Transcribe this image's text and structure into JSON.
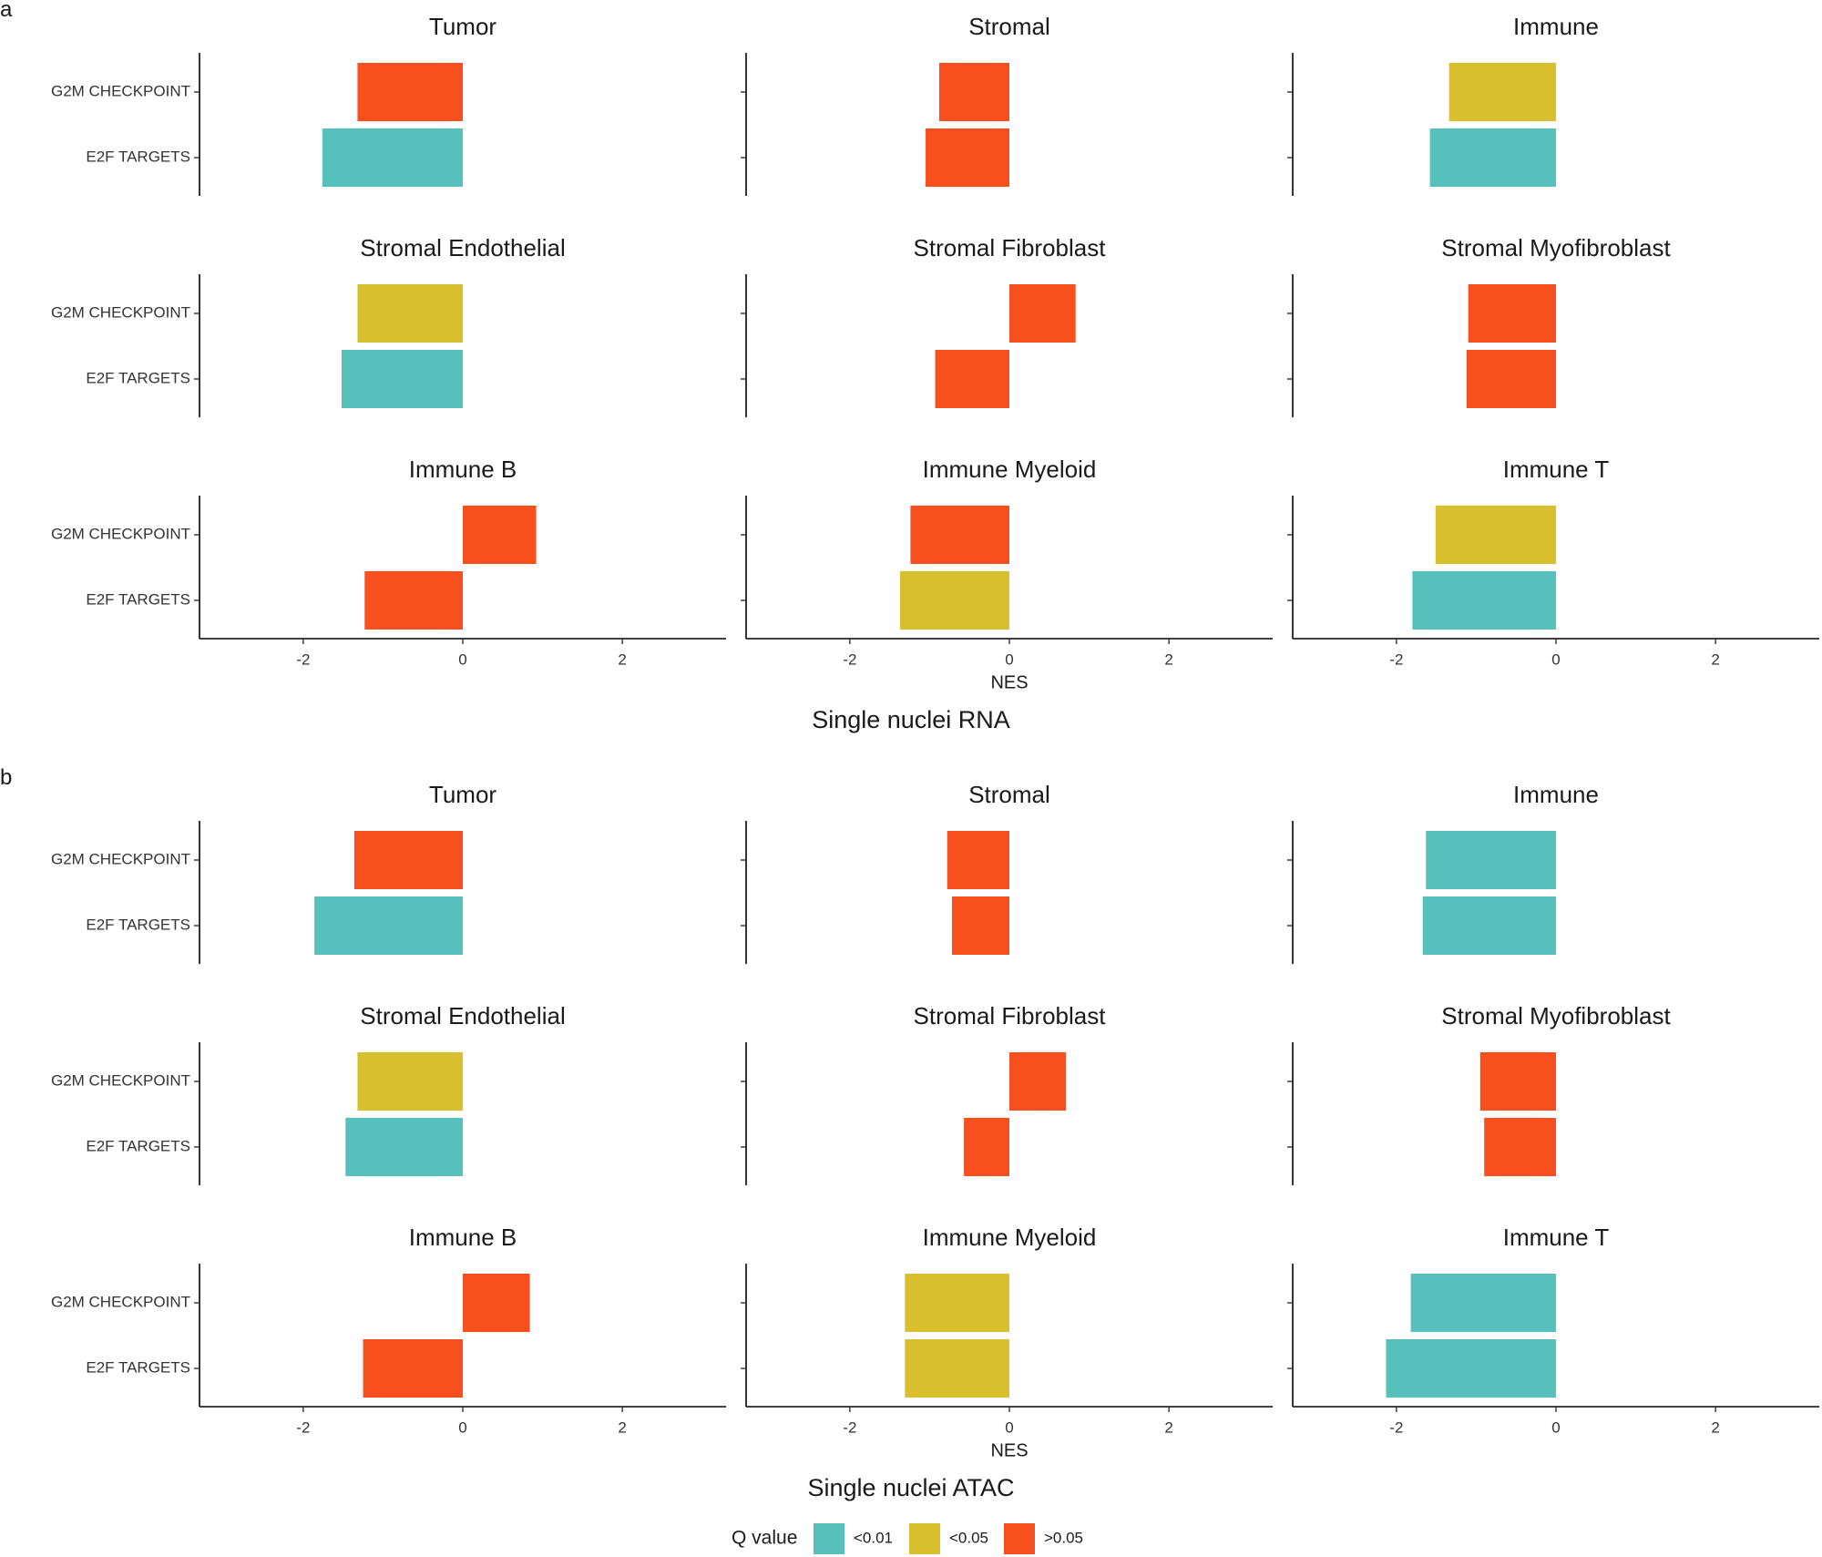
{
  "chart_data": [
    {
      "panel": "a",
      "type": "bar",
      "orientation": "horizontal",
      "title": "Single nuclei RNA",
      "xlabel": "NES",
      "xlim": [
        -3.3,
        3.3
      ],
      "xticks": [
        -2,
        0,
        2
      ],
      "categories": [
        "G2M CHECKPOINT",
        "E2F TARGETS"
      ],
      "facets": [
        {
          "name": "Tumor",
          "bars": [
            {
              "category": "G2M CHECKPOINT",
              "value": -1.32,
              "q": ">0.05"
            },
            {
              "category": "E2F TARGETS",
              "value": -1.76,
              "q": "<0.01"
            }
          ]
        },
        {
          "name": "Stromal",
          "bars": [
            {
              "category": "G2M CHECKPOINT",
              "value": -0.88,
              "q": ">0.05"
            },
            {
              "category": "E2F TARGETS",
              "value": -1.05,
              "q": ">0.05"
            }
          ]
        },
        {
          "name": "Immune",
          "bars": [
            {
              "category": "G2M CHECKPOINT",
              "value": -1.34,
              "q": "<0.05"
            },
            {
              "category": "E2F TARGETS",
              "value": -1.58,
              "q": "<0.01"
            }
          ]
        },
        {
          "name": "Stromal Endothelial",
          "bars": [
            {
              "category": "G2M CHECKPOINT",
              "value": -1.32,
              "q": "<0.05"
            },
            {
              "category": "E2F TARGETS",
              "value": -1.52,
              "q": "<0.01"
            }
          ]
        },
        {
          "name": "Stromal Fibroblast",
          "bars": [
            {
              "category": "G2M CHECKPOINT",
              "value": 0.83,
              "q": ">0.05"
            },
            {
              "category": "E2F TARGETS",
              "value": -0.93,
              "q": ">0.05"
            }
          ]
        },
        {
          "name": "Stromal Myofibroblast",
          "bars": [
            {
              "category": "G2M CHECKPOINT",
              "value": -1.1,
              "q": ">0.05"
            },
            {
              "category": "E2F TARGETS",
              "value": -1.12,
              "q": ">0.05"
            }
          ]
        },
        {
          "name": "Immune B",
          "bars": [
            {
              "category": "G2M CHECKPOINT",
              "value": 0.92,
              "q": ">0.05"
            },
            {
              "category": "E2F TARGETS",
              "value": -1.23,
              "q": ">0.05"
            }
          ]
        },
        {
          "name": "Immune Myeloid",
          "bars": [
            {
              "category": "G2M CHECKPOINT",
              "value": -1.24,
              "q": ">0.05"
            },
            {
              "category": "E2F TARGETS",
              "value": -1.37,
              "q": "<0.05"
            }
          ]
        },
        {
          "name": "Immune T",
          "bars": [
            {
              "category": "G2M CHECKPOINT",
              "value": -1.51,
              "q": "<0.05"
            },
            {
              "category": "E2F TARGETS",
              "value": -1.8,
              "q": "<0.01"
            }
          ]
        }
      ]
    },
    {
      "panel": "b",
      "type": "bar",
      "orientation": "horizontal",
      "title": "Single nuclei ATAC",
      "xlabel": "NES",
      "xlim": [
        -3.3,
        3.3
      ],
      "xticks": [
        -2,
        0,
        2
      ],
      "categories": [
        "G2M CHECKPOINT",
        "E2F TARGETS"
      ],
      "facets": [
        {
          "name": "Tumor",
          "bars": [
            {
              "category": "G2M CHECKPOINT",
              "value": -1.36,
              "q": ">0.05"
            },
            {
              "category": "E2F TARGETS",
              "value": -1.86,
              "q": "<0.01"
            }
          ]
        },
        {
          "name": "Stromal",
          "bars": [
            {
              "category": "G2M CHECKPOINT",
              "value": -0.78,
              "q": ">0.05"
            },
            {
              "category": "E2F TARGETS",
              "value": -0.72,
              "q": ">0.05"
            }
          ]
        },
        {
          "name": "Immune",
          "bars": [
            {
              "category": "G2M CHECKPOINT",
              "value": -1.63,
              "q": "<0.01"
            },
            {
              "category": "E2F TARGETS",
              "value": -1.67,
              "q": "<0.01"
            }
          ]
        },
        {
          "name": "Stromal Endothelial",
          "bars": [
            {
              "category": "G2M CHECKPOINT",
              "value": -1.32,
              "q": "<0.05"
            },
            {
              "category": "E2F TARGETS",
              "value": -1.47,
              "q": "<0.01"
            }
          ]
        },
        {
          "name": "Stromal Fibroblast",
          "bars": [
            {
              "category": "G2M CHECKPOINT",
              "value": 0.71,
              "q": ">0.05"
            },
            {
              "category": "E2F TARGETS",
              "value": -0.57,
              "q": ">0.05"
            }
          ]
        },
        {
          "name": "Stromal Myofibroblast",
          "bars": [
            {
              "category": "G2M CHECKPOINT",
              "value": -0.95,
              "q": ">0.05"
            },
            {
              "category": "E2F TARGETS",
              "value": -0.9,
              "q": ">0.05"
            }
          ]
        },
        {
          "name": "Immune B",
          "bars": [
            {
              "category": "G2M CHECKPOINT",
              "value": 0.84,
              "q": ">0.05"
            },
            {
              "category": "E2F TARGETS",
              "value": -1.25,
              "q": ">0.05"
            }
          ]
        },
        {
          "name": "Immune Myeloid",
          "bars": [
            {
              "category": "G2M CHECKPOINT",
              "value": -1.31,
              "q": "<0.05"
            },
            {
              "category": "E2F TARGETS",
              "value": -1.31,
              "q": "<0.05"
            }
          ]
        },
        {
          "name": "Immune T",
          "bars": [
            {
              "category": "G2M CHECKPOINT",
              "value": -1.82,
              "q": "<0.01"
            },
            {
              "category": "E2F TARGETS",
              "value": -2.13,
              "q": "<0.01"
            }
          ]
        }
      ]
    }
  ],
  "legend": {
    "title": "Q value",
    "items": [
      {
        "label": "<0.01",
        "color": "#56c1bc"
      },
      {
        "label": "<0.05",
        "color": "#d9bf2e"
      },
      {
        "label": ">0.05",
        "color": "#f8501c"
      }
    ]
  }
}
